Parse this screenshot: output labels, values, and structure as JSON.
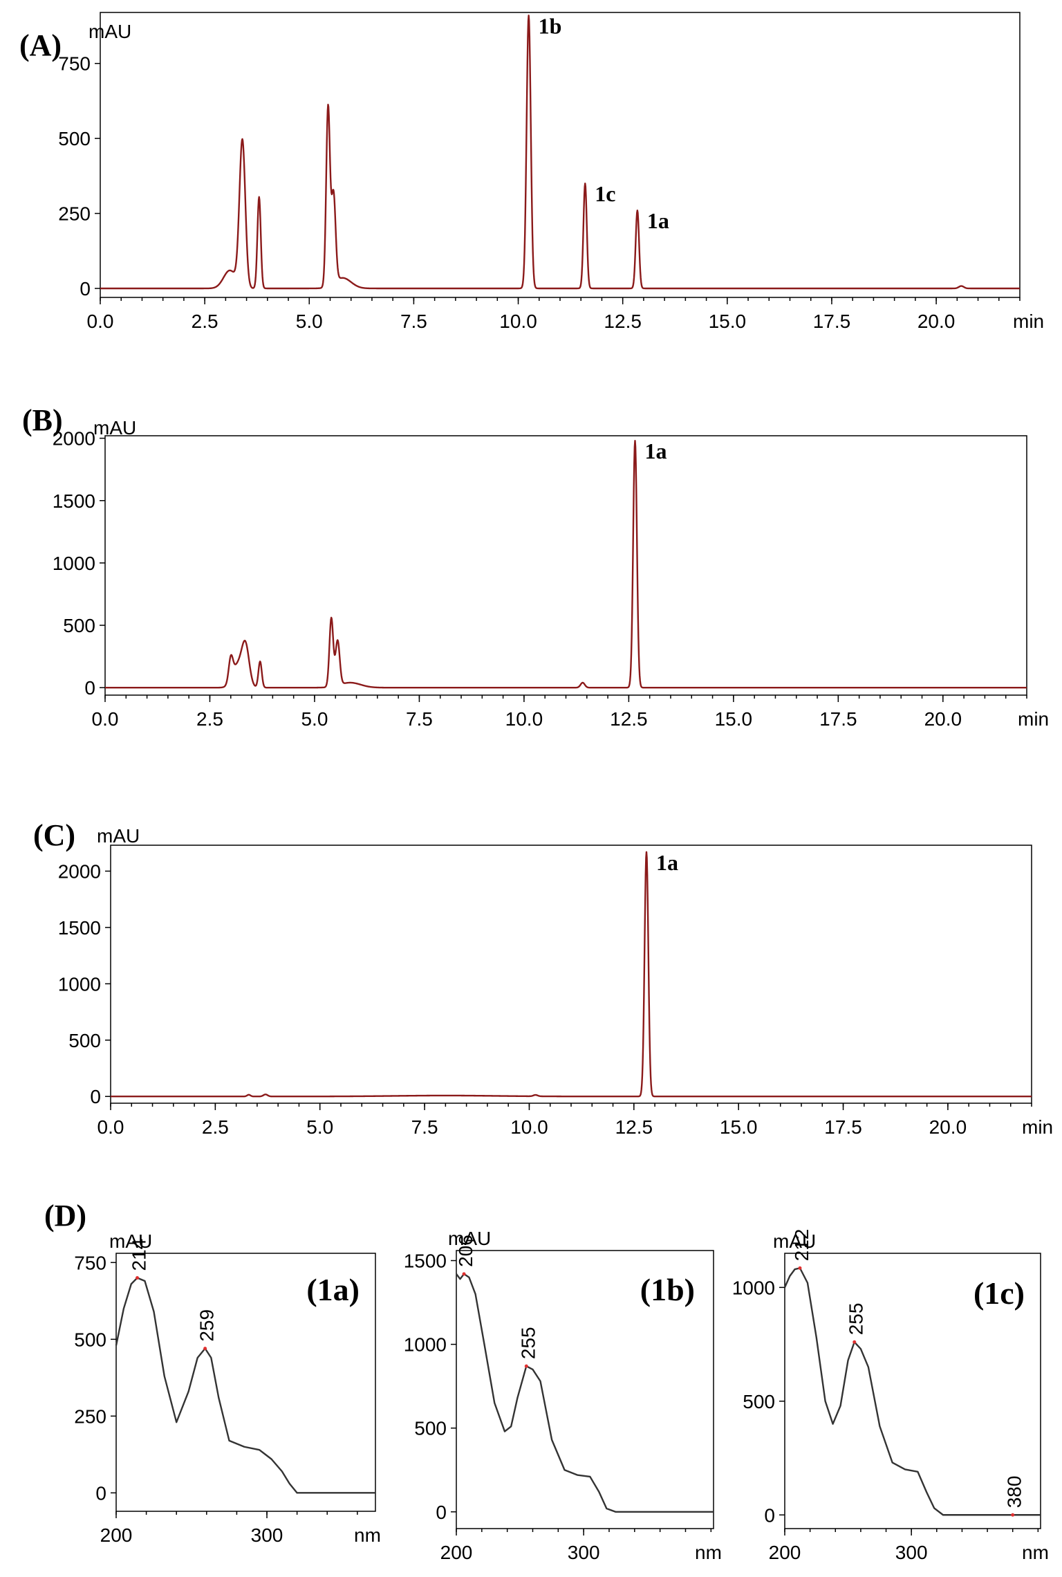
{
  "panels": {
    "A": {
      "label": "(A)",
      "y_unit": "mAU",
      "x_unit": "min",
      "peak_labels": [
        "1b",
        "1c",
        "1a"
      ]
    },
    "B": {
      "label": "(B)",
      "y_unit": "mAU",
      "x_unit": "min",
      "peak_labels": [
        "1a"
      ]
    },
    "C": {
      "label": "(C)",
      "y_unit": "mAU",
      "x_unit": "min",
      "peak_labels": [
        "1a"
      ]
    },
    "D": {
      "label": "(D)"
    }
  },
  "colors": {
    "chromatogram": "#8b1a1a",
    "spectrum": "#333333",
    "maxima_mark": "#e03030"
  },
  "chart_data": [
    {
      "id": "A",
      "type": "line",
      "xlim": [
        0,
        22
      ],
      "ylim": [
        -30,
        920
      ],
      "xticks": [
        "0.0",
        "2.5",
        "5.0",
        "7.5",
        "10.0",
        "12.5",
        "15.0",
        "17.5",
        "20.0"
      ],
      "yticks": [
        "0",
        "250",
        "500",
        "750"
      ],
      "peaks": [
        {
          "x": 3.1,
          "y": 60,
          "w": 0.15
        },
        {
          "x": 3.4,
          "y": 490,
          "w": 0.07
        },
        {
          "x": 3.8,
          "y": 305,
          "w": 0.04
        },
        {
          "x": 5.45,
          "y": 595,
          "w": 0.045
        },
        {
          "x": 5.58,
          "y": 300,
          "w": 0.05
        },
        {
          "x": 5.8,
          "y": 35,
          "w": 0.2
        },
        {
          "x": 10.25,
          "y": 910,
          "w": 0.05
        },
        {
          "x": 11.6,
          "y": 350,
          "w": 0.04
        },
        {
          "x": 12.85,
          "y": 260,
          "w": 0.04
        },
        {
          "x": 20.6,
          "y": 8,
          "w": 0.06
        }
      ],
      "annotations": [
        {
          "text": "1b",
          "x": 10.25
        },
        {
          "text": "1c",
          "x": 11.6
        },
        {
          "text": "1a",
          "x": 12.85
        }
      ]
    },
    {
      "id": "B",
      "type": "line",
      "xlim": [
        0,
        22
      ],
      "ylim": [
        -60,
        2020
      ],
      "xticks": [
        "0.0",
        "2.5",
        "5.0",
        "7.5",
        "10.0",
        "12.5",
        "15.0",
        "17.5",
        "20.0"
      ],
      "yticks": [
        "0",
        "500",
        "1000",
        "1500",
        "2000"
      ],
      "peaks": [
        {
          "x": 3.0,
          "y": 180,
          "w": 0.05
        },
        {
          "x": 3.15,
          "y": 170,
          "w": 0.12
        },
        {
          "x": 3.35,
          "y": 330,
          "w": 0.09
        },
        {
          "x": 3.7,
          "y": 210,
          "w": 0.04
        },
        {
          "x": 5.4,
          "y": 550,
          "w": 0.045
        },
        {
          "x": 5.55,
          "y": 360,
          "w": 0.05
        },
        {
          "x": 5.85,
          "y": 40,
          "w": 0.25
        },
        {
          "x": 11.4,
          "y": 40,
          "w": 0.05
        },
        {
          "x": 12.65,
          "y": 1980,
          "w": 0.045
        }
      ],
      "annotations": [
        {
          "text": "1a",
          "x": 12.65
        }
      ]
    },
    {
      "id": "C",
      "type": "line",
      "xlim": [
        0,
        22
      ],
      "ylim": [
        -60,
        2230
      ],
      "xticks": [
        "0.0",
        "2.5",
        "5.0",
        "7.5",
        "10.0",
        "12.5",
        "15.0",
        "17.5",
        "20.0"
      ],
      "yticks": [
        "0",
        "500",
        "1000",
        "1500",
        "2000"
      ],
      "peaks": [
        {
          "x": 3.3,
          "y": 15,
          "w": 0.04
        },
        {
          "x": 3.7,
          "y": 18,
          "w": 0.05
        },
        {
          "x": 8.0,
          "y": 8,
          "w": 1.2
        },
        {
          "x": 10.15,
          "y": 12,
          "w": 0.05
        },
        {
          "x": 12.8,
          "y": 2170,
          "w": 0.045
        }
      ],
      "annotations": [
        {
          "text": "1a",
          "x": 12.8
        }
      ]
    },
    {
      "id": "D1",
      "type": "line",
      "inset_label": "(1a)",
      "xlim": [
        200,
        372
      ],
      "ylim": [
        -60,
        780
      ],
      "xticks": [
        "200",
        "300"
      ],
      "yticks": [
        "0",
        "250",
        "500",
        "750"
      ],
      "x_unit": "nm",
      "y_unit": "mAU",
      "x": [
        200,
        205,
        210,
        214,
        219,
        225,
        232,
        240,
        248,
        254,
        259,
        263,
        268,
        275,
        285,
        295,
        303,
        310,
        315,
        320,
        330,
        372
      ],
      "y": [
        480,
        600,
        680,
        700,
        690,
        590,
        380,
        230,
        330,
        440,
        470,
        440,
        310,
        170,
        150,
        140,
        110,
        70,
        30,
        0,
        0,
        0
      ],
      "maxima": [
        {
          "text": "214",
          "x": 214,
          "y": 700
        },
        {
          "text": "259",
          "x": 259,
          "y": 470
        }
      ]
    },
    {
      "id": "D2",
      "type": "line",
      "inset_label": "(1b)",
      "xlim": [
        200,
        402
      ],
      "ylim": [
        -100,
        1560
      ],
      "xticks": [
        "200",
        "300"
      ],
      "yticks": [
        "0",
        "500",
        "1000",
        "1500"
      ],
      "x_unit": "nm",
      "y_unit": "mAU",
      "x": [
        200,
        203,
        206,
        210,
        215,
        222,
        230,
        238,
        243,
        248,
        255,
        260,
        266,
        275,
        285,
        295,
        305,
        312,
        318,
        325,
        335,
        402
      ],
      "y": [
        1420,
        1390,
        1420,
        1400,
        1300,
        1000,
        650,
        480,
        510,
        680,
        870,
        850,
        780,
        430,
        250,
        220,
        210,
        120,
        20,
        0,
        0,
        0
      ],
      "maxima": [
        {
          "text": "206",
          "x": 206,
          "y": 1420
        },
        {
          "text": "255",
          "x": 255,
          "y": 870
        }
      ]
    },
    {
      "id": "D3",
      "type": "line",
      "inset_label": "(1c)",
      "xlim": [
        200,
        402
      ],
      "ylim": [
        -60,
        1150
      ],
      "xticks": [
        "200",
        "300"
      ],
      "yticks": [
        "0",
        "500",
        "1000"
      ],
      "x_unit": "nm",
      "y_unit": "mAU",
      "x": [
        200,
        204,
        208,
        212,
        218,
        225,
        232,
        238,
        244,
        250,
        255,
        260,
        266,
        275,
        285,
        295,
        305,
        312,
        318,
        325,
        335,
        380,
        402
      ],
      "y": [
        1000,
        1050,
        1080,
        1085,
        1020,
        780,
        500,
        400,
        480,
        680,
        760,
        730,
        650,
        390,
        230,
        200,
        190,
        100,
        30,
        0,
        0,
        0,
        0
      ],
      "maxima": [
        {
          "text": "212",
          "x": 212,
          "y": 1085
        },
        {
          "text": "255",
          "x": 255,
          "y": 760
        },
        {
          "text": "380",
          "x": 380,
          "y": 0
        }
      ]
    }
  ]
}
